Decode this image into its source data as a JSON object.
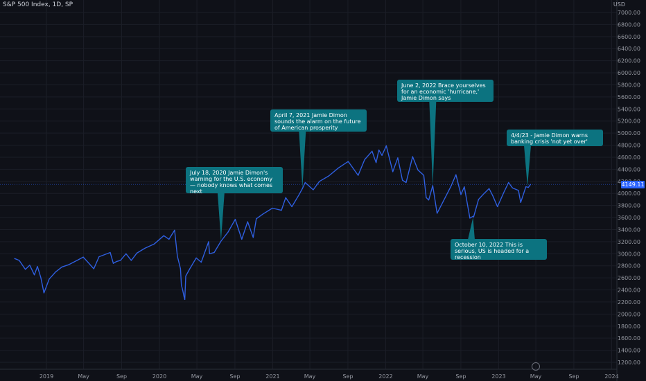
{
  "header": {
    "title": "S&P 500 Index, 1D, SP",
    "currency": "USD"
  },
  "price_tag": "4149.11",
  "colors": {
    "background": "#0f1118",
    "line": "#2f5fe0",
    "callout": "#0c7380",
    "price_tag": "#2962ff",
    "axis_text": "#9598a1"
  },
  "chart_data": {
    "type": "line",
    "x_unit": "date",
    "series": [
      {
        "x": [
          "2018-09-20",
          "2018-10-05",
          "2018-10-25",
          "2018-11-08",
          "2018-11-23",
          "2018-12-03",
          "2018-12-14",
          "2018-12-24",
          "2019-01-10",
          "2019-01-31",
          "2019-02-20",
          "2019-03-15",
          "2019-04-10",
          "2019-04-30",
          "2019-05-15",
          "2019-06-03",
          "2019-06-20",
          "2019-07-26",
          "2019-08-05",
          "2019-08-15",
          "2019-08-28",
          "2019-09-15",
          "2019-10-02",
          "2019-10-20",
          "2019-11-15",
          "2019-12-15",
          "2020-01-15",
          "2020-02-01",
          "2020-02-19",
          "2020-02-28",
          "2020-03-09",
          "2020-03-12",
          "2020-03-16",
          "2020-03-20",
          "2020-03-23",
          "2020-03-26",
          "2020-04-08",
          "2020-04-29",
          "2020-05-15",
          "2020-06-08",
          "2020-06-11",
          "2020-06-26",
          "2020-07-18",
          "2020-08-10",
          "2020-09-02",
          "2020-09-23",
          "2020-10-12",
          "2020-10-30",
          "2020-11-09",
          "2020-12-01",
          "2020-12-31",
          "2021-01-29",
          "2021-02-12",
          "2021-03-04",
          "2021-03-26",
          "2021-04-07",
          "2021-04-16",
          "2021-05-12",
          "2021-06-01",
          "2021-07-01",
          "2021-08-01",
          "2021-09-02",
          "2021-10-04",
          "2021-10-25",
          "2021-11-18",
          "2021-12-01",
          "2021-12-10",
          "2021-12-20",
          "2022-01-03",
          "2022-01-24",
          "2022-02-09",
          "2022-02-24",
          "2022-03-08",
          "2022-03-29",
          "2022-04-15",
          "2022-05-04",
          "2022-05-12",
          "2022-05-20",
          "2022-06-02",
          "2022-06-16",
          "2022-07-05",
          "2022-08-01",
          "2022-08-16",
          "2022-09-01",
          "2022-09-12",
          "2022-09-30",
          "2022-10-10",
          "2022-10-12",
          "2022-10-28",
          "2022-11-15",
          "2022-12-01",
          "2022-12-13",
          "2022-12-28",
          "2023-01-18",
          "2023-02-02",
          "2023-02-15",
          "2023-03-06",
          "2023-03-13",
          "2023-03-30",
          "2023-04-07",
          "2023-04-14"
        ],
        "y": [
          2920,
          2890,
          2740,
          2810,
          2650,
          2790,
          2600,
          2350,
          2580,
          2700,
          2780,
          2820,
          2890,
          2945,
          2860,
          2750,
          2950,
          3020,
          2840,
          2870,
          2890,
          3000,
          2890,
          3010,
          3090,
          3160,
          3300,
          3240,
          3390,
          2960,
          2750,
          2480,
          2400,
          2300,
          2240,
          2630,
          2750,
          2930,
          2860,
          3200,
          3000,
          3020,
          3210,
          3360,
          3570,
          3240,
          3530,
          3270,
          3580,
          3660,
          3755,
          3720,
          3930,
          3780,
          3970,
          4080,
          4180,
          4060,
          4200,
          4290,
          4420,
          4530,
          4300,
          4560,
          4700,
          4510,
          4720,
          4630,
          4790,
          4360,
          4590,
          4220,
          4180,
          4610,
          4390,
          4300,
          3930,
          3890,
          4130,
          3670,
          3860,
          4130,
          4310,
          3980,
          4110,
          3590,
          3620,
          3610,
          3900,
          4000,
          4080,
          3960,
          3780,
          4020,
          4180,
          4090,
          4050,
          3850,
          4110,
          4100,
          4149
        ]
      }
    ],
    "ylim": [
      1100,
      7100
    ],
    "y_ticks": [
      1200,
      1400,
      1600,
      1800,
      2000,
      2200,
      2400,
      2600,
      2800,
      3000,
      3200,
      3400,
      3600,
      3800,
      4000,
      4200,
      4400,
      4600,
      4800,
      5000,
      5200,
      5400,
      5600,
      5800,
      6000,
      6200,
      6400,
      6600,
      6800,
      7000
    ],
    "y_tick_labels": [
      "1200.00",
      "1400.00",
      "1600.00",
      "1800.00",
      "2000.00",
      "2200.00",
      "2400.00",
      "2600.00",
      "2800.00",
      "3000.00",
      "3200.00",
      "3400.00",
      "3600.00",
      "3800.00",
      "4000.00",
      "4200.00",
      "4400.00",
      "4600.00",
      "4800.00",
      "5000.00",
      "5200.00",
      "5400.00",
      "5600.00",
      "5800.00",
      "6000.00",
      "6200.00",
      "6400.00",
      "6600.00",
      "6800.00",
      "7000.00"
    ],
    "x_ticks": [
      {
        "date": "2019-01-01",
        "label": "2019"
      },
      {
        "date": "2019-05-01",
        "label": "May"
      },
      {
        "date": "2019-09-01",
        "label": "Sep"
      },
      {
        "date": "2020-01-01",
        "label": "2020"
      },
      {
        "date": "2020-05-01",
        "label": "May"
      },
      {
        "date": "2020-09-01",
        "label": "Sep"
      },
      {
        "date": "2021-01-01",
        "label": "2021"
      },
      {
        "date": "2021-05-01",
        "label": "May"
      },
      {
        "date": "2021-09-01",
        "label": "Sep"
      },
      {
        "date": "2022-01-01",
        "label": "2022"
      },
      {
        "date": "2022-05-01",
        "label": "May"
      },
      {
        "date": "2022-09-01",
        "label": "Sep"
      },
      {
        "date": "2023-01-01",
        "label": "2023"
      },
      {
        "date": "2023-05-01",
        "label": "May"
      },
      {
        "date": "2023-09-01",
        "label": "Sep"
      },
      {
        "date": "2024-01-01",
        "label": "2024"
      }
    ],
    "annotations": [
      {
        "date": "2020-07-18",
        "value": 3220,
        "lines": [
          "July 18, 2020 Jamie Dimon's",
          "warning for the U.S. economy",
          "— nobody knows what comes",
          "next"
        ]
      },
      {
        "date": "2021-04-07",
        "value": 4090,
        "lines": [
          "April 7, 2021 Jamie Dimon",
          "sounds the alarm on the future",
          "of American prosperity"
        ]
      },
      {
        "date": "2022-06-02",
        "value": 4120,
        "lines": [
          "June 2, 2022 Brace yourselves",
          "for an economic 'hurricane,'",
          "Jamie Dimon says"
        ]
      },
      {
        "date": "2022-10-10",
        "value": 3600,
        "lines": [
          "October 10, 2022 This is",
          "serious, US is headed for a",
          "recession"
        ]
      },
      {
        "date": "2023-04-04",
        "value": 4120,
        "lines": [
          "4/4/23 - Jamie Dimon warns",
          "banking crisis 'not yet over'"
        ]
      }
    ],
    "grid": true,
    "legend": "none"
  }
}
